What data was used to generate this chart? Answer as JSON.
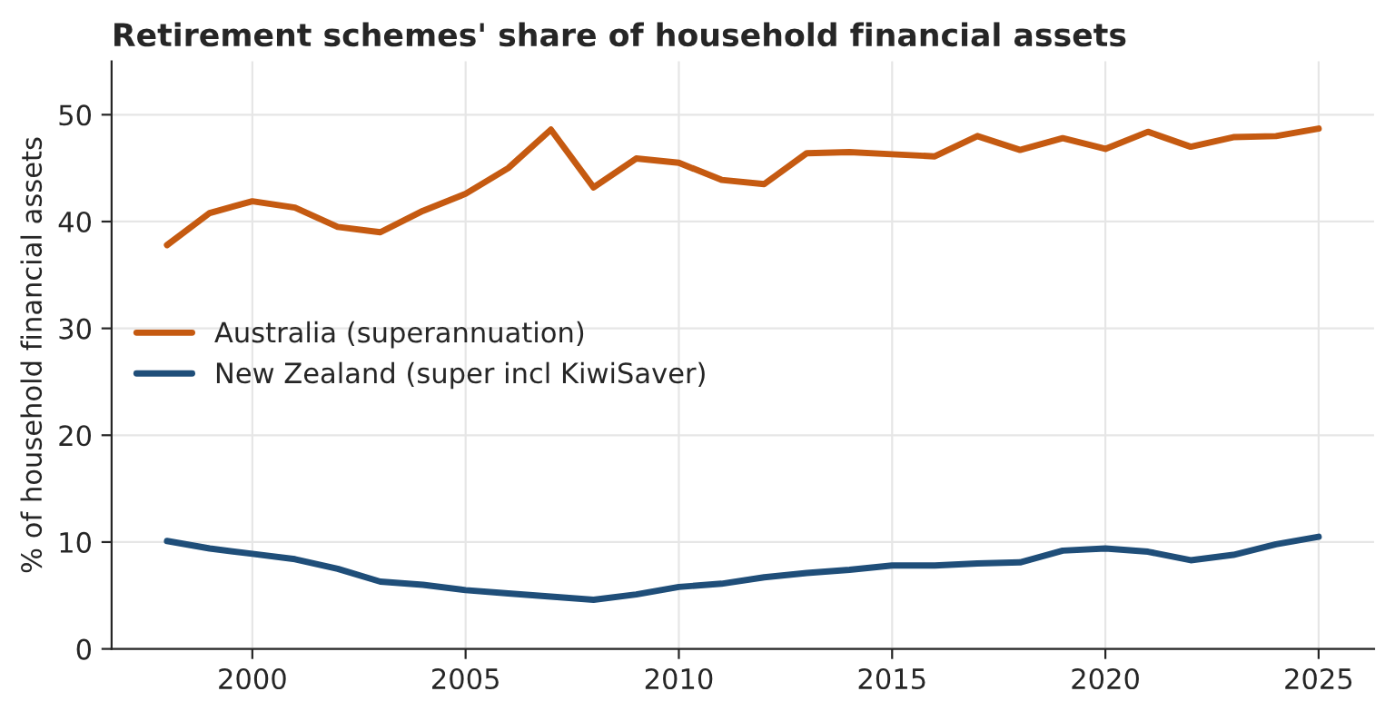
{
  "chart_data": {
    "type": "line",
    "title": "Retirement schemes' share of household financial assets",
    "ylabel": "% of household financial assets",
    "x": [
      1998,
      1999,
      2000,
      2001,
      2002,
      2003,
      2004,
      2005,
      2006,
      2007,
      2008,
      2009,
      2010,
      2011,
      2012,
      2013,
      2014,
      2015,
      2016,
      2017,
      2018,
      2019,
      2020,
      2021,
      2022,
      2023,
      2024,
      2025
    ],
    "series": [
      {
        "name": "Australia (superannuation)",
        "color": "#c55a11",
        "values": [
          37.8,
          40.8,
          41.9,
          41.3,
          39.5,
          39.0,
          41.0,
          42.6,
          45.0,
          48.6,
          43.2,
          45.9,
          45.5,
          43.9,
          43.5,
          46.4,
          46.5,
          46.3,
          46.1,
          48.0,
          46.7,
          47.8,
          46.8,
          48.4,
          47.0,
          47.9,
          48.0,
          48.7
        ]
      },
      {
        "name": "New Zealand (super incl KiwiSaver)",
        "color": "#1f4e79",
        "values": [
          10.1,
          9.4,
          8.9,
          8.4,
          7.5,
          6.3,
          6.0,
          5.5,
          5.2,
          4.9,
          4.6,
          5.1,
          5.8,
          6.1,
          6.7,
          7.1,
          7.4,
          7.8,
          7.8,
          8.0,
          8.1,
          9.2,
          9.4,
          9.1,
          8.3,
          8.8,
          9.8,
          10.5
        ]
      }
    ],
    "xlim": [
      1996.7,
      2026.3
    ],
    "xticks": [
      2000,
      2005,
      2010,
      2015,
      2020,
      2025
    ],
    "ylim": [
      0,
      55
    ],
    "yticks": [
      0,
      10,
      20,
      30,
      40,
      50
    ],
    "grid": true,
    "legend": "center left",
    "marker": "none",
    "line_style": "solid"
  }
}
